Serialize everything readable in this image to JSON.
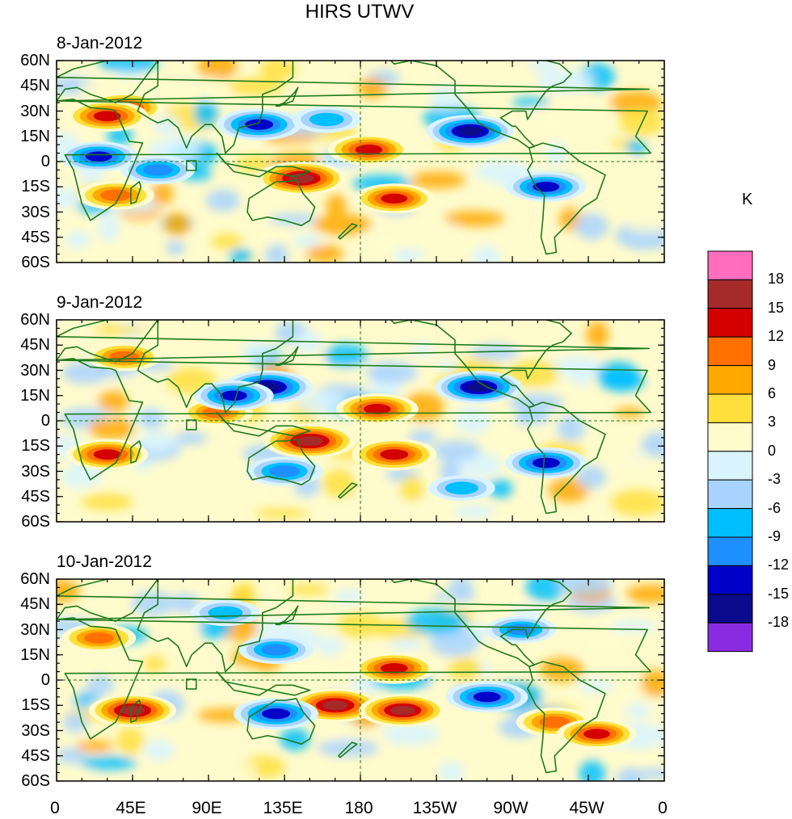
{
  "title": "HIRS UTWV",
  "panels": [
    {
      "date": "8-Jan-2012"
    },
    {
      "date": "9-Jan-2012"
    },
    {
      "date": "10-Jan-2012"
    }
  ],
  "lat_labels": [
    "60N",
    "45N",
    "30N",
    "15N",
    "0",
    "15S",
    "30S",
    "45S",
    "60S"
  ],
  "lon_labels": [
    "0",
    "45E",
    "90E",
    "135E",
    "180",
    "135W",
    "90W",
    "45W",
    "0"
  ],
  "colorbar": {
    "unit": "K",
    "labels": [
      "18",
      "15",
      "12",
      "9",
      "6",
      "3",
      "0",
      "-3",
      "-6",
      "-9",
      "-12",
      "-15",
      "-18"
    ],
    "colors": [
      "#ff6ebe",
      "#a52a2a",
      "#d40000",
      "#ff7000",
      "#ffa800",
      "#ffdf3c",
      "#fffbcc",
      "#d9f4ff",
      "#a8d3ff",
      "#00bfff",
      "#1e8fff",
      "#0000c8",
      "#0a0a8c",
      "#8a2be2"
    ]
  },
  "chart_data": {
    "type": "heatmap",
    "title": "HIRS UTWV",
    "colorbar_unit": "K",
    "levels": [
      -18,
      -15,
      -12,
      -9,
      -6,
      -3,
      0,
      3,
      6,
      9,
      12,
      15,
      18
    ],
    "panels": [
      {
        "date": "8-Jan-2012",
        "anomalies": [
          {
            "lon": 185,
            "lat": 7,
            "value": 13
          },
          {
            "lon": 145,
            "lat": -10,
            "value": 16
          },
          {
            "lon": 40,
            "lat": 32,
            "value": 12
          },
          {
            "lon": 30,
            "lat": 27,
            "value": 13
          },
          {
            "lon": 120,
            "lat": 22,
            "value": -14
          },
          {
            "lon": 245,
            "lat": 18,
            "value": -15
          },
          {
            "lon": 200,
            "lat": -22,
            "value": 12
          },
          {
            "lon": 290,
            "lat": -15,
            "value": -12
          },
          {
            "lon": 35,
            "lat": -20,
            "value": 11
          },
          {
            "lon": 25,
            "lat": 3,
            "value": -12
          },
          {
            "lon": 60,
            "lat": -5,
            "value": -10
          },
          {
            "lon": 160,
            "lat": 25,
            "value": -8
          }
        ]
      },
      {
        "date": "9-Jan-2012",
        "anomalies": [
          {
            "lon": 190,
            "lat": 7,
            "value": 13
          },
          {
            "lon": 150,
            "lat": -12,
            "value": 17
          },
          {
            "lon": 125,
            "lat": 20,
            "value": -16
          },
          {
            "lon": 250,
            "lat": 20,
            "value": -15
          },
          {
            "lon": 200,
            "lat": -20,
            "value": 14
          },
          {
            "lon": 40,
            "lat": 38,
            "value": 10
          },
          {
            "lon": 30,
            "lat": -20,
            "value": 13
          },
          {
            "lon": 290,
            "lat": -25,
            "value": -13
          },
          {
            "lon": 135,
            "lat": -30,
            "value": -11
          },
          {
            "lon": 95,
            "lat": 5,
            "value": 9
          },
          {
            "lon": 105,
            "lat": 15,
            "value": -12
          },
          {
            "lon": 240,
            "lat": -40,
            "value": -7
          }
        ]
      },
      {
        "date": "10-Jan-2012",
        "anomalies": [
          {
            "lon": 200,
            "lat": 7,
            "value": 13
          },
          {
            "lon": 165,
            "lat": -15,
            "value": 16
          },
          {
            "lon": 205,
            "lat": -18,
            "value": 15
          },
          {
            "lon": 130,
            "lat": 18,
            "value": -10
          },
          {
            "lon": 255,
            "lat": -10,
            "value": -13
          },
          {
            "lon": 25,
            "lat": 25,
            "value": 10
          },
          {
            "lon": 45,
            "lat": -18,
            "value": 15
          },
          {
            "lon": 130,
            "lat": -20,
            "value": -14
          },
          {
            "lon": 295,
            "lat": -25,
            "value": 11
          },
          {
            "lon": 320,
            "lat": -32,
            "value": 12
          },
          {
            "lon": 100,
            "lat": 40,
            "value": -8
          },
          {
            "lon": 275,
            "lat": 30,
            "value": -9
          }
        ]
      }
    ],
    "x_range": [
      0,
      360
    ],
    "y_range": [
      -60,
      60
    ],
    "xlabel": "",
    "ylabel": ""
  }
}
